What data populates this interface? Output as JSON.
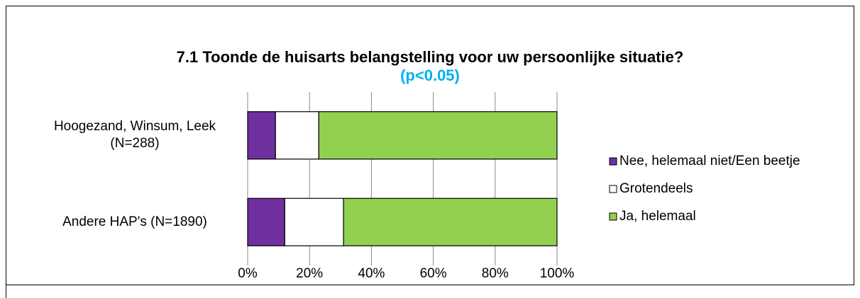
{
  "chart_data": {
    "type": "bar",
    "orientation": "horizontal",
    "stacked": true,
    "title": "7.1 Toonde de huisarts belangstelling voor uw persoonlijke situatie?",
    "subtitle": "(p<0.05)",
    "subtitle_color": "#00b0f0",
    "categories": [
      "Hoogezand, Winsum, Leek (N=288)",
      "Andere HAP's (N=1890)"
    ],
    "series": [
      {
        "name": "Nee, helemaal niet/Een beetje",
        "color": "#7030a0",
        "values": [
          9,
          12
        ]
      },
      {
        "name": "Grotendeels",
        "color": "#ffffff",
        "values": [
          14,
          19
        ]
      },
      {
        "name": "Ja, helemaal",
        "color": "#92d050",
        "values": [
          77,
          69
        ]
      }
    ],
    "xlim": [
      0,
      100
    ],
    "xticks": [
      {
        "value": 0,
        "label": "0%"
      },
      {
        "value": 20,
        "label": "20%"
      },
      {
        "value": 40,
        "label": "40%"
      },
      {
        "value": 60,
        "label": "60%"
      },
      {
        "value": 80,
        "label": "80%"
      },
      {
        "value": 100,
        "label": "100%"
      }
    ],
    "grid": true,
    "legend": "right"
  }
}
